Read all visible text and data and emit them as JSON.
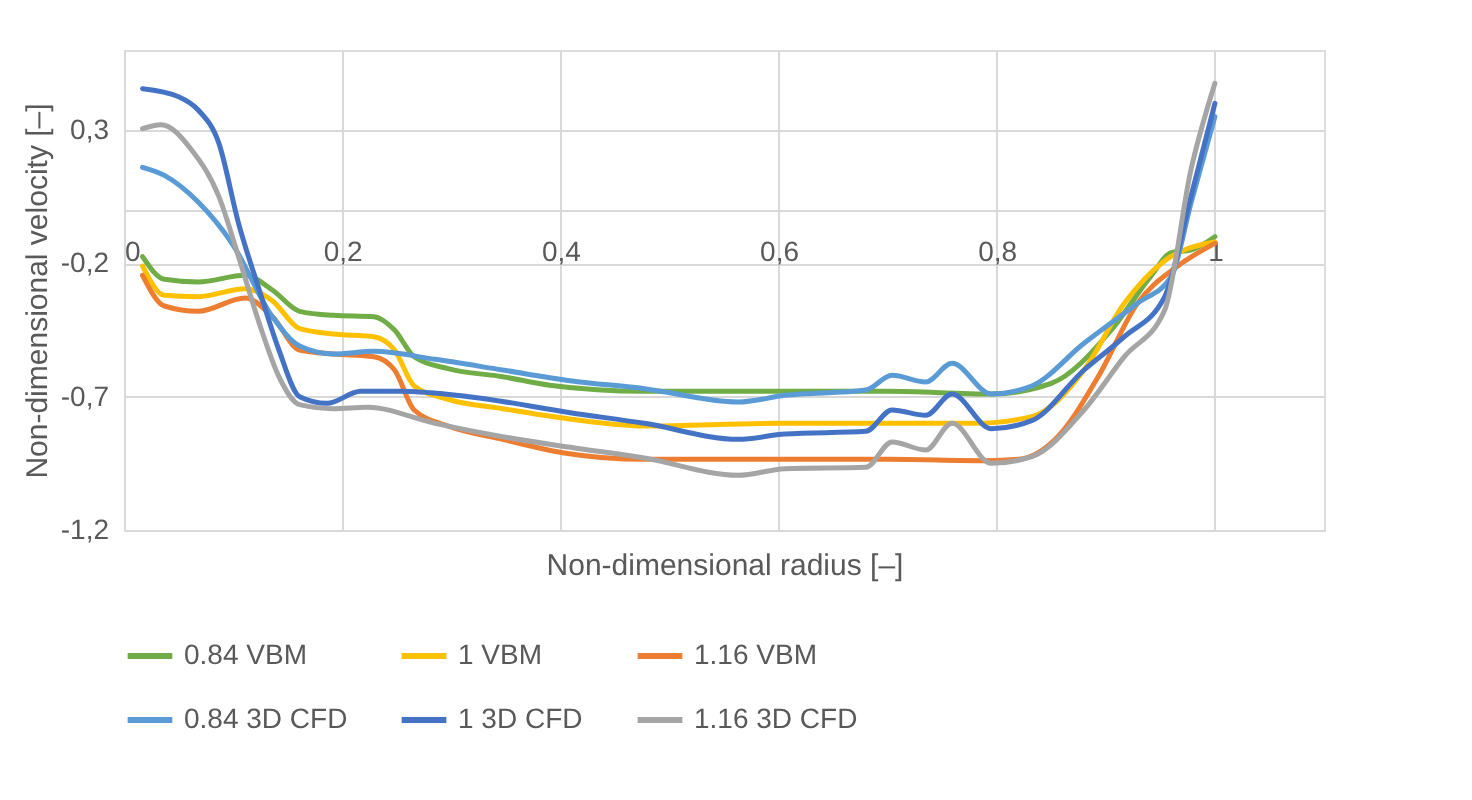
{
  "chart_data": {
    "type": "line",
    "xlabel": "Non-dimensional radius [–]",
    "ylabel": "Non-dimensional velocity [–]",
    "xlim": [
      0,
      1.1
    ],
    "ylim": [
      -1.2,
      0.6
    ],
    "xticks": [
      0,
      {
        "value": 0.2,
        "label": "0,2"
      },
      {
        "value": 0.4,
        "label": "0,4"
      },
      {
        "value": 0.6,
        "label": "0,6"
      },
      {
        "value": 0.8,
        "label": "0,8"
      },
      1
    ],
    "yticks": [
      {
        "value": -1.2,
        "label": "-1,2"
      },
      {
        "value": -0.7,
        "label": "-0,7"
      },
      {
        "value": -0.2,
        "label": "-0,2"
      },
      {
        "value": 0.3,
        "label": "0,3"
      }
    ],
    "grid": true,
    "legend": "bottom",
    "line_style": "solid",
    "marker": "none",
    "series": [
      {
        "name": "0.84 VBM",
        "color": "#70ad47",
        "x": [
          0.017,
          0.037,
          0.068,
          0.111,
          0.136,
          0.161,
          0.192,
          0.229,
          0.248,
          0.266,
          0.297,
          0.347,
          0.39,
          0.477,
          0.6,
          0.7,
          0.795,
          0.85,
          0.905,
          0.941,
          0.96,
          0.978,
          1.0
        ],
        "values": [
          -0.175,
          -0.26,
          -0.27,
          -0.245,
          -0.3,
          -0.38,
          -0.395,
          -0.4,
          -0.45,
          -0.55,
          -0.595,
          -0.625,
          -0.657,
          -0.68,
          -0.68,
          -0.68,
          -0.69,
          -0.65,
          -0.45,
          -0.25,
          -0.16,
          -0.15,
          -0.1
        ]
      },
      {
        "name": "1 VBM",
        "color": "#ffc000",
        "x": [
          0.017,
          0.037,
          0.068,
          0.111,
          0.136,
          0.161,
          0.192,
          0.229,
          0.248,
          0.266,
          0.297,
          0.347,
          0.402,
          0.477,
          0.6,
          0.7,
          0.78,
          0.832,
          0.88,
          0.917,
          0.954,
          1.0
        ],
        "values": [
          -0.21,
          -0.32,
          -0.325,
          -0.295,
          -0.34,
          -0.445,
          -0.465,
          -0.475,
          -0.525,
          -0.66,
          -0.71,
          -0.745,
          -0.78,
          -0.81,
          -0.8,
          -0.8,
          -0.8,
          -0.775,
          -0.6,
          -0.35,
          -0.19,
          -0.12
        ]
      },
      {
        "name": "1.16 VBM",
        "color": "#ed7d31",
        "x": [
          0.017,
          0.037,
          0.068,
          0.111,
          0.136,
          0.161,
          0.192,
          0.229,
          0.248,
          0.266,
          0.297,
          0.347,
          0.402,
          0.477,
          0.6,
          0.7,
          0.79,
          0.82,
          0.856,
          0.893,
          0.929,
          0.966,
          1.0
        ],
        "values": [
          -0.245,
          -0.36,
          -0.38,
          -0.33,
          -0.4,
          -0.525,
          -0.54,
          -0.55,
          -0.6,
          -0.75,
          -0.81,
          -0.86,
          -0.91,
          -0.935,
          -0.935,
          -0.935,
          -0.94,
          -0.935,
          -0.85,
          -0.625,
          -0.35,
          -0.21,
          -0.125
        ]
      },
      {
        "name": "0.84 3D CFD",
        "color": "#5b9bd5",
        "x": [
          0.017,
          0.037,
          0.068,
          0.099,
          0.136,
          0.161,
          0.192,
          0.229,
          0.285,
          0.347,
          0.409,
          0.477,
          0.563,
          0.606,
          0.68,
          0.704,
          0.735,
          0.759,
          0.795,
          0.832,
          0.88,
          0.929,
          0.96,
          0.978,
          1.0
        ],
        "values": [
          0.16,
          0.13,
          0.03,
          -0.125,
          -0.4,
          -0.51,
          -0.54,
          -0.53,
          -0.56,
          -0.6,
          -0.64,
          -0.67,
          -0.72,
          -0.695,
          -0.675,
          -0.62,
          -0.645,
          -0.575,
          -0.69,
          -0.66,
          -0.5,
          -0.35,
          -0.25,
          0.025,
          0.35
        ]
      },
      {
        "name": "1 3D CFD",
        "color": "#4472c4",
        "x": [
          0.017,
          0.05,
          0.068,
          0.087,
          0.105,
          0.124,
          0.142,
          0.161,
          0.186,
          0.217,
          0.254,
          0.316,
          0.409,
          0.477,
          0.563,
          0.606,
          0.68,
          0.704,
          0.735,
          0.759,
          0.795,
          0.832,
          0.88,
          0.917,
          0.954,
          0.978,
          1.0
        ],
        "values": [
          0.455,
          0.425,
          0.375,
          0.25,
          -0.05,
          -0.3,
          -0.525,
          -0.7,
          -0.725,
          -0.68,
          -0.68,
          -0.7,
          -0.76,
          -0.8,
          -0.86,
          -0.84,
          -0.83,
          -0.75,
          -0.77,
          -0.69,
          -0.82,
          -0.79,
          -0.6,
          -0.475,
          -0.325,
          0.05,
          0.4
        ]
      },
      {
        "name": "1.16 3D CFD",
        "color": "#a5a5a5",
        "x": [
          0.017,
          0.034,
          0.062,
          0.087,
          0.105,
          0.124,
          0.142,
          0.161,
          0.192,
          0.223,
          0.285,
          0.347,
          0.409,
          0.477,
          0.563,
          0.606,
          0.68,
          0.704,
          0.735,
          0.759,
          0.795,
          0.832,
          0.88,
          0.917,
          0.954,
          0.978,
          1.0
        ],
        "values": [
          0.305,
          0.32,
          0.225,
          0.05,
          -0.175,
          -0.425,
          -0.625,
          -0.73,
          -0.745,
          -0.74,
          -0.8,
          -0.85,
          -0.89,
          -0.93,
          -0.995,
          -0.97,
          -0.965,
          -0.87,
          -0.9,
          -0.8,
          -0.95,
          -0.925,
          -0.75,
          -0.55,
          -0.375,
          0.15,
          0.475
        ]
      }
    ]
  }
}
